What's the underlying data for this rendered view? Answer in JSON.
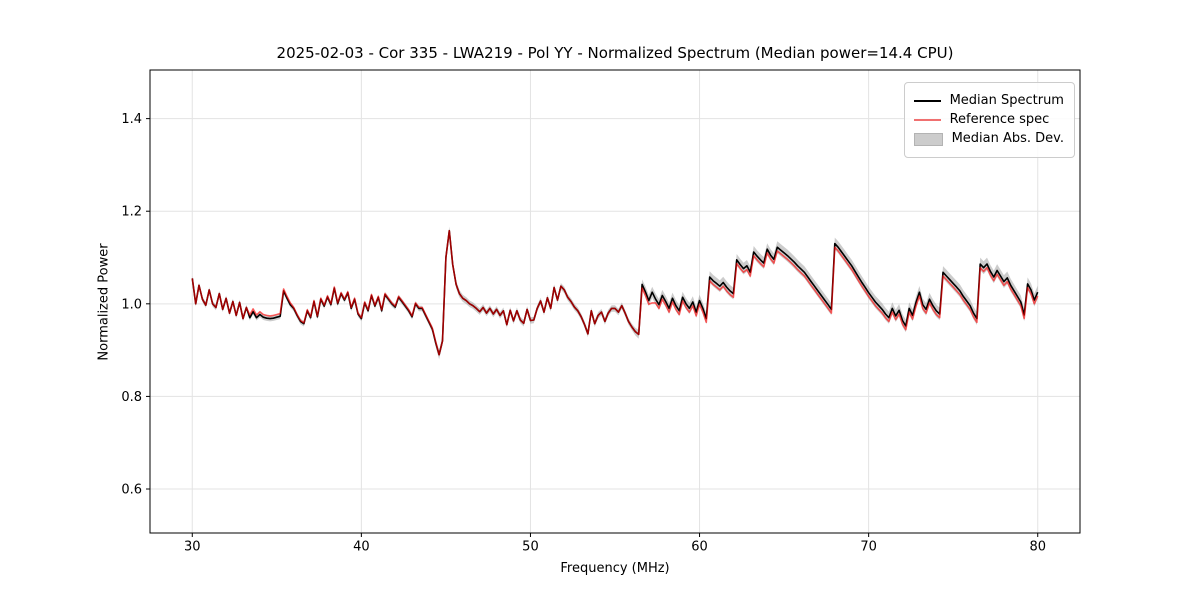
{
  "chart_data": {
    "type": "line",
    "title": "2025-02-03 - Cor 335 - LWA219 - Pol YY - Normalized Spectrum (Median power=14.4 CPU)",
    "xlabel": "Frequency (MHz)",
    "ylabel": "Normalized Power",
    "xlim": [
      27.5,
      82.5
    ],
    "ylim": [
      0.505,
      1.505
    ],
    "xticks": [
      30,
      40,
      50,
      60,
      70,
      80
    ],
    "xtick_labels": [
      "30",
      "40",
      "50",
      "60",
      "70",
      "80"
    ],
    "yticks": [
      0.6,
      0.8,
      1.0,
      1.2,
      1.4
    ],
    "ytick_labels": [
      "0.6",
      "0.8",
      "1.0",
      "1.2",
      "1.4"
    ],
    "grid": true,
    "grid_color": "#e3e3e3",
    "legend_position": "upper right",
    "freq_start": 30.0,
    "freq_step": 0.2,
    "series": [
      {
        "name": "Median Spectrum",
        "color": "#000000",
        "opacity": 1.0,
        "values": [
          1.055,
          1.0,
          1.04,
          1.01,
          0.997,
          1.03,
          1.0,
          0.992,
          1.022,
          0.988,
          1.012,
          0.98,
          1.005,
          0.975,
          1.003,
          0.968,
          0.992,
          0.97,
          0.983,
          0.97,
          0.977,
          0.971,
          0.969,
          0.968,
          0.969,
          0.971,
          0.973,
          1.028,
          1.012,
          0.998,
          0.99,
          0.975,
          0.962,
          0.957,
          0.985,
          0.97,
          1.005,
          0.972,
          1.01,
          0.995,
          1.015,
          0.998,
          1.034,
          1.0,
          1.022,
          1.008,
          1.024,
          0.99,
          1.01,
          0.978,
          0.968,
          1.002,
          0.985,
          1.018,
          0.995,
          1.014,
          0.985,
          1.02,
          1.01,
          1.0,
          0.993,
          1.014,
          1.005,
          0.995,
          0.985,
          0.972,
          1.0,
          0.99,
          0.99,
          0.975,
          0.96,
          0.945,
          0.915,
          0.89,
          0.92,
          1.1,
          1.158,
          1.085,
          1.042,
          1.022,
          1.012,
          1.007,
          1.0,
          0.996,
          0.99,
          0.983,
          0.992,
          0.98,
          0.99,
          0.978,
          0.988,
          0.975,
          0.985,
          0.955,
          0.986,
          0.963,
          0.985,
          0.965,
          0.958,
          0.988,
          0.964,
          0.965,
          0.99,
          1.006,
          0.982,
          1.013,
          0.99,
          1.035,
          1.008,
          1.038,
          1.03,
          1.014,
          1.005,
          0.993,
          0.985,
          0.972,
          0.955,
          0.935,
          0.985,
          0.957,
          0.975,
          0.982,
          0.962,
          0.98,
          0.99,
          0.99,
          0.982,
          0.996,
          0.98,
          0.962,
          0.95,
          0.94,
          0.934,
          1.042,
          1.026,
          1.007,
          1.025,
          1.01,
          0.998,
          1.018,
          1.005,
          0.99,
          1.012,
          0.996,
          0.985,
          1.014,
          1.0,
          0.99,
          1.004,
          0.982,
          1.007,
          0.99,
          0.968,
          1.058,
          1.05,
          1.044,
          1.038,
          1.046,
          1.036,
          1.028,
          1.022,
          1.095,
          1.085,
          1.076,
          1.082,
          1.068,
          1.112,
          1.103,
          1.095,
          1.088,
          1.118,
          1.105,
          1.096,
          1.122,
          1.116,
          1.11,
          1.104,
          1.097,
          1.09,
          1.082,
          1.075,
          1.068,
          1.058,
          1.048,
          1.038,
          1.028,
          1.018,
          1.008,
          0.998,
          0.988,
          1.13,
          1.122,
          1.112,
          1.102,
          1.092,
          1.082,
          1.07,
          1.058,
          1.046,
          1.035,
          1.024,
          1.014,
          1.004,
          0.996,
          0.988,
          0.978,
          0.97,
          0.99,
          0.974,
          0.986,
          0.964,
          0.952,
          0.99,
          0.975,
          1.003,
          1.025,
          0.998,
          0.988,
          1.01,
          0.996,
          0.985,
          0.978,
          1.068,
          1.06,
          1.052,
          1.044,
          1.036,
          1.028,
          1.016,
          1.006,
          0.996,
          0.98,
          0.968,
          1.086,
          1.078,
          1.086,
          1.07,
          1.058,
          1.072,
          1.06,
          1.048,
          1.056,
          1.04,
          1.028,
          1.016,
          1.004,
          0.976,
          1.043,
          1.03,
          1.008,
          1.025
        ]
      },
      {
        "name": "Reference spec",
        "color": "#ff0000",
        "opacity": 0.62,
        "values": [
          1.055,
          1.0,
          1.04,
          1.01,
          0.997,
          1.03,
          1.0,
          0.992,
          1.022,
          0.988,
          1.012,
          0.98,
          1.005,
          0.975,
          1.003,
          0.968,
          0.992,
          0.976,
          0.989,
          0.976,
          0.983,
          0.977,
          0.975,
          0.974,
          0.975,
          0.977,
          0.979,
          1.032,
          1.016,
          1.002,
          0.992,
          0.977,
          0.964,
          0.959,
          0.987,
          0.972,
          1.007,
          0.974,
          1.012,
          0.997,
          1.017,
          1.0,
          1.036,
          1.002,
          1.024,
          1.01,
          1.026,
          0.992,
          1.012,
          0.98,
          0.97,
          1.004,
          0.987,
          1.02,
          0.997,
          1.016,
          0.987,
          1.022,
          1.012,
          1.002,
          0.995,
          1.016,
          1.007,
          0.997,
          0.987,
          0.974,
          1.002,
          0.992,
          0.992,
          0.977,
          0.962,
          0.947,
          0.917,
          0.89,
          0.92,
          1.1,
          1.158,
          1.085,
          1.042,
          1.022,
          1.012,
          1.007,
          1.0,
          0.996,
          0.99,
          0.983,
          0.992,
          0.98,
          0.99,
          0.978,
          0.988,
          0.975,
          0.985,
          0.955,
          0.986,
          0.963,
          0.985,
          0.965,
          0.958,
          0.988,
          0.964,
          0.965,
          0.99,
          1.006,
          0.982,
          1.013,
          0.99,
          1.035,
          1.008,
          1.038,
          1.03,
          1.014,
          1.005,
          0.993,
          0.985,
          0.972,
          0.955,
          0.935,
          0.985,
          0.957,
          0.975,
          0.982,
          0.962,
          0.98,
          0.99,
          0.99,
          0.982,
          0.996,
          0.98,
          0.962,
          0.95,
          0.94,
          0.934,
          1.034,
          1.018,
          0.999,
          1.002,
          1.002,
          0.99,
          1.01,
          0.997,
          0.982,
          1.004,
          0.988,
          0.977,
          1.006,
          0.992,
          0.982,
          0.996,
          0.974,
          0.999,
          0.982,
          0.96,
          1.05,
          1.042,
          1.036,
          1.03,
          1.038,
          1.028,
          1.02,
          1.014,
          1.087,
          1.077,
          1.068,
          1.074,
          1.06,
          1.104,
          1.095,
          1.087,
          1.08,
          1.11,
          1.097,
          1.088,
          1.114,
          1.108,
          1.102,
          1.096,
          1.089,
          1.082,
          1.074,
          1.067,
          1.06,
          1.05,
          1.04,
          1.03,
          1.02,
          1.01,
          1.0,
          0.99,
          0.98,
          1.122,
          1.114,
          1.104,
          1.094,
          1.084,
          1.074,
          1.062,
          1.05,
          1.038,
          1.027,
          1.016,
          1.006,
          0.996,
          0.988,
          0.98,
          0.97,
          0.962,
          0.982,
          0.966,
          0.978,
          0.956,
          0.944,
          0.982,
          0.967,
          0.995,
          1.017,
          0.99,
          0.98,
          1.002,
          0.988,
          0.977,
          0.97,
          1.06,
          1.052,
          1.044,
          1.036,
          1.028,
          1.02,
          1.008,
          0.998,
          0.988,
          0.972,
          0.96,
          1.078,
          1.07,
          1.078,
          1.062,
          1.05,
          1.064,
          1.052,
          1.04,
          1.048,
          1.032,
          1.02,
          1.008,
          0.996,
          0.968,
          1.035,
          1.022,
          1.0,
          1.017
        ]
      }
    ],
    "band": {
      "name": "Median Abs. Dev.",
      "color": "#808080",
      "opacity": 0.4,
      "centered_on": "Median Spectrum",
      "halfwidth_breakpoints": [
        [
          30,
          0.006
        ],
        [
          44.0,
          0.006
        ],
        [
          44.6,
          0.01
        ],
        [
          46.5,
          0.007
        ],
        [
          56.0,
          0.007
        ],
        [
          56.8,
          0.012
        ],
        [
          65.0,
          0.013
        ],
        [
          68.0,
          0.013
        ],
        [
          80,
          0.014
        ]
      ]
    }
  },
  "legend": {
    "entries": [
      {
        "label": "Median Spectrum",
        "swatch": "line",
        "color": "#000000"
      },
      {
        "label": "Reference spec",
        "swatch": "line",
        "color": "#f07070"
      },
      {
        "label": "Median Abs. Dev.",
        "swatch": "patch",
        "color": "#cccccc"
      }
    ]
  }
}
